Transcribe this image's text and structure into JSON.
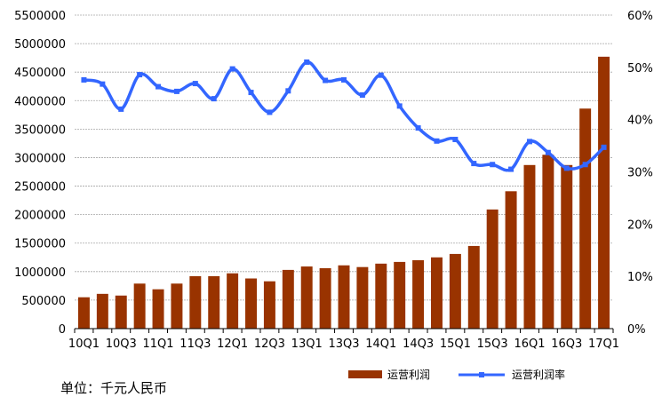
{
  "chart_data": {
    "type": "bar",
    "categories": [
      "10Q1",
      "10Q2",
      "10Q3",
      "10Q4",
      "11Q1",
      "11Q2",
      "11Q3",
      "11Q4",
      "12Q1",
      "12Q2",
      "12Q3",
      "12Q4",
      "13Q1",
      "13Q2",
      "13Q3",
      "13Q4",
      "14Q1",
      "14Q2",
      "14Q3",
      "14Q4",
      "15Q1",
      "15Q2",
      "15Q3",
      "15Q4",
      "16Q1",
      "16Q2",
      "16Q3",
      "16Q4",
      "17Q1"
    ],
    "x_tick_labels": [
      "10Q1",
      "10Q3",
      "11Q1",
      "11Q3",
      "12Q1",
      "12Q3",
      "13Q1",
      "13Q3",
      "14Q1",
      "14Q3",
      "15Q1",
      "15Q3",
      "16Q1",
      "16Q3",
      "17Q1"
    ],
    "series": [
      {
        "name": "运营利润",
        "axis": "left",
        "kind": "bar",
        "color": "#993300",
        "values": [
          550000,
          610000,
          580000,
          790000,
          690000,
          790000,
          920000,
          920000,
          970000,
          880000,
          830000,
          1030000,
          1090000,
          1060000,
          1110000,
          1080000,
          1140000,
          1170000,
          1200000,
          1250000,
          1310000,
          1450000,
          2090000,
          2410000,
          2870000,
          3050000,
          2870000,
          3860000,
          4770000
        ]
      },
      {
        "name": "运营利润率",
        "axis": "right",
        "kind": "line",
        "color": "#3366ff",
        "values": [
          47.6,
          46.8,
          42.0,
          48.6,
          46.3,
          45.4,
          46.9,
          44.0,
          49.7,
          45.2,
          41.4,
          45.5,
          51.0,
          47.5,
          47.6,
          44.7,
          48.5,
          42.6,
          38.4,
          35.9,
          36.2,
          31.6,
          31.4,
          30.5,
          35.8,
          33.7,
          30.7,
          31.4,
          34.7
        ]
      }
    ],
    "y_left": {
      "min": 0,
      "max": 5500000,
      "step": 500000,
      "tick_labels": [
        "0",
        "500000",
        "1000000",
        "1500000",
        "2000000",
        "2500000",
        "3000000",
        "3500000",
        "4000000",
        "4500000",
        "5000000",
        "5500000"
      ]
    },
    "y_right": {
      "min": 0,
      "max": 60,
      "step": 10,
      "tick_labels": [
        "0%",
        "10%",
        "20%",
        "30%",
        "40%",
        "50%",
        "60%"
      ]
    },
    "grid": true,
    "legend_position": "bottom-right",
    "unit_note": "单位：千元人民币"
  }
}
